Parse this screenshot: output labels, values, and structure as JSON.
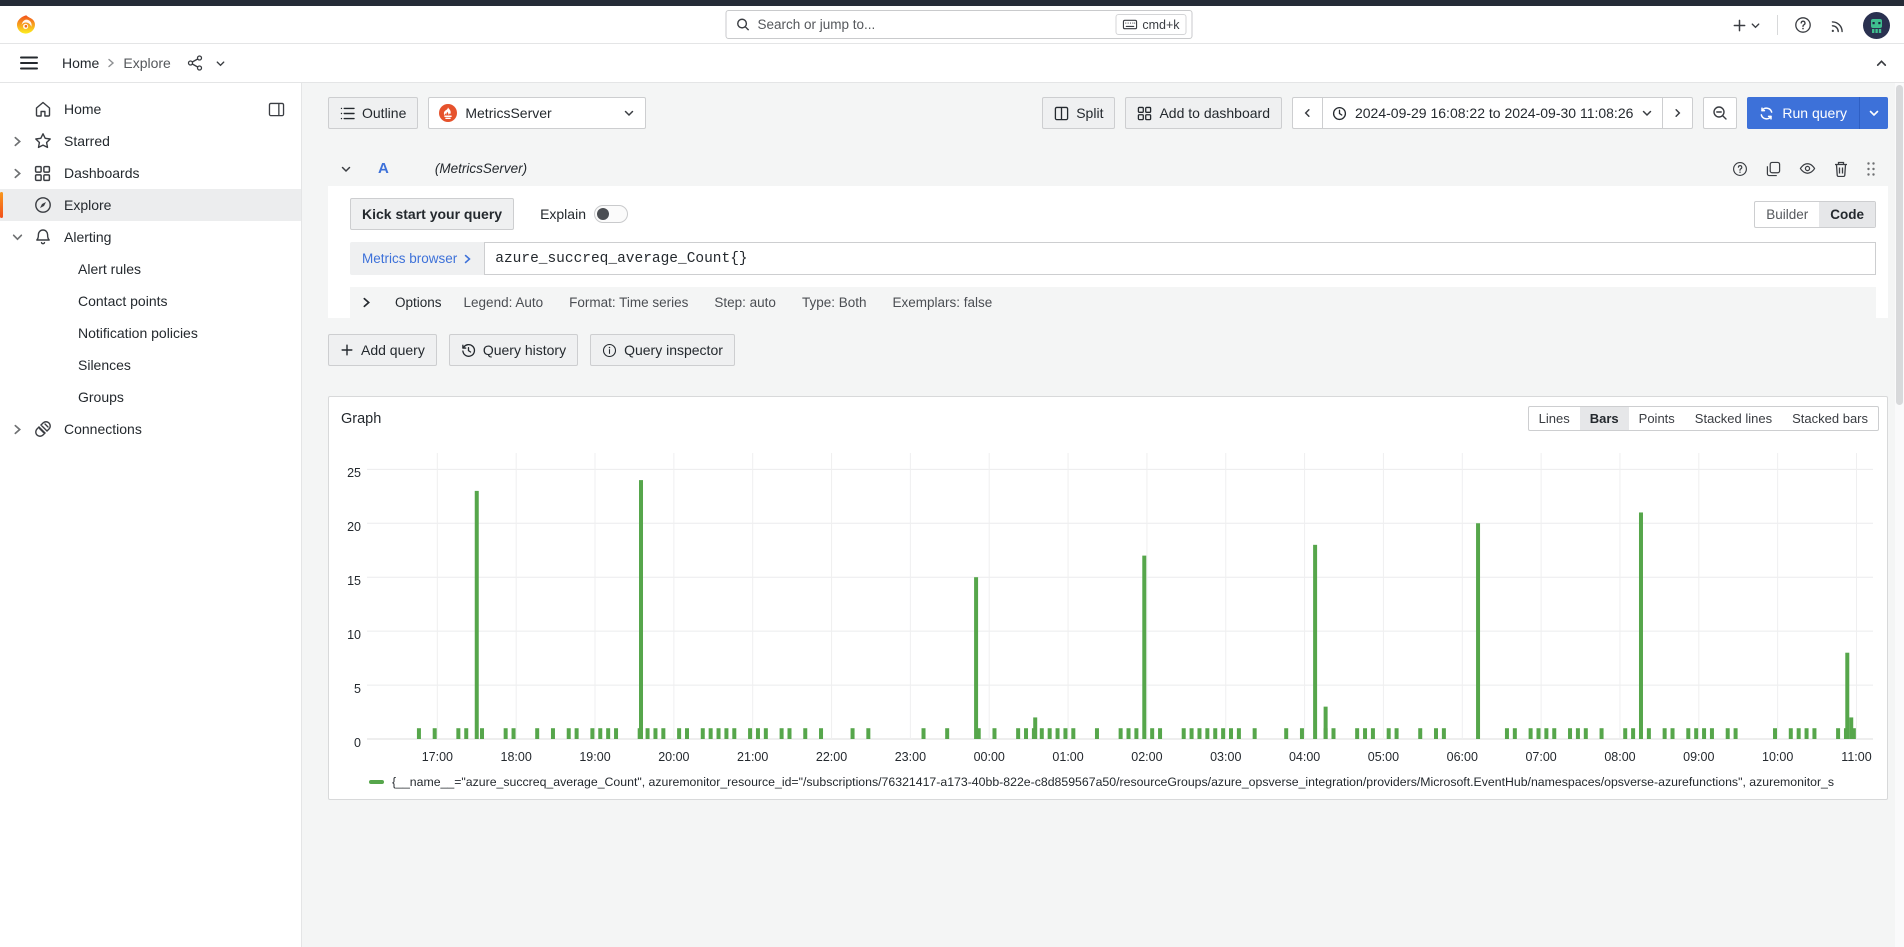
{
  "colors": {
    "accent_blue": "#3D71D9",
    "bar_green": "#56A64B",
    "logo_orange": "#F2501C",
    "prometheus_red": "#E6522C",
    "top_strip": "#252B37"
  },
  "topbar": {
    "search": {
      "placeholder": "Search or jump to...",
      "shortcut": "cmd+k"
    }
  },
  "breadcrumb": {
    "home": "Home",
    "current": "Explore"
  },
  "sidebar": {
    "items": [
      {
        "label": "Home",
        "icon": "home-icon",
        "caret": "",
        "active": false,
        "children": []
      },
      {
        "label": "Starred",
        "icon": "star-icon",
        "caret": "right",
        "active": false,
        "children": []
      },
      {
        "label": "Dashboards",
        "icon": "apps-icon",
        "caret": "right",
        "active": false,
        "children": []
      },
      {
        "label": "Explore",
        "icon": "compass-icon",
        "caret": "",
        "active": true,
        "children": []
      },
      {
        "label": "Alerting",
        "icon": "bell-icon",
        "caret": "down",
        "active": false,
        "children": [
          "Alert rules",
          "Contact points",
          "Notification policies",
          "Silences",
          "Groups"
        ]
      },
      {
        "label": "Connections",
        "icon": "plug-icon",
        "caret": "right",
        "active": false,
        "children": []
      }
    ]
  },
  "toolbar": {
    "outline_label": "Outline",
    "datasource": "MetricsServer",
    "split_label": "Split",
    "add_to_dashboard_label": "Add to dashboard",
    "time_range": "2024-09-29 16:08:22 to 2024-09-30 11:08:26",
    "run_query_label": "Run query"
  },
  "query": {
    "ref_id": "A",
    "datasource_hint": "(MetricsServer)",
    "kick_start_label": "Kick start your query",
    "explain_label": "Explain",
    "builder_label": "Builder",
    "code_label": "Code",
    "metrics_browser_label": "Metrics browser",
    "expression": "azure_succreq_average_Count{}",
    "options_label": "Options",
    "options_summary": [
      "Legend: Auto",
      "Format: Time series",
      "Step: auto",
      "Type: Both",
      "Exemplars: false"
    ]
  },
  "actions": {
    "add_query": "Add query",
    "query_history": "Query history",
    "query_inspector": "Query inspector"
  },
  "graph": {
    "title": "Graph",
    "vis_options": [
      "Lines",
      "Bars",
      "Points",
      "Stacked lines",
      "Stacked bars"
    ],
    "active_vis": "Bars"
  },
  "chart_data": {
    "type": "bar",
    "title": "Graph",
    "color": "#56A64B",
    "x_range_start": "2024-09-29 16:08:22",
    "x_range_end": "2024-09-30 11:08:26",
    "x_ticks": [
      "17:00",
      "18:00",
      "19:00",
      "20:00",
      "21:00",
      "22:00",
      "23:00",
      "00:00",
      "01:00",
      "02:00",
      "03:00",
      "04:00",
      "05:00",
      "06:00",
      "07:00",
      "08:00",
      "09:00",
      "10:00",
      "11:00"
    ],
    "y_ticks": [
      0,
      5,
      10,
      15,
      20,
      25
    ],
    "ylim": [
      0,
      26.5
    ],
    "grid": true,
    "baseline": {
      "value": 1,
      "interval_minutes": 6,
      "density": 0.62,
      "gaps": [
        [
          "16:09",
          "16:24"
        ],
        [
          "09:33",
          "09:57"
        ]
      ]
    },
    "spikes": [
      {
        "time": "17:30",
        "value": 23
      },
      {
        "time": "19:35",
        "value": 24
      },
      {
        "time": "23:50",
        "value": 15
      },
      {
        "time": "00:35",
        "value": 2
      },
      {
        "time": "01:58",
        "value": 17
      },
      {
        "time": "04:08",
        "value": 18
      },
      {
        "time": "04:16",
        "value": 3
      },
      {
        "time": "06:12",
        "value": 20
      },
      {
        "time": "08:16",
        "value": 21
      },
      {
        "time": "10:53",
        "value": 8
      },
      {
        "time": "10:56",
        "value": 2
      }
    ],
    "legend": [
      {
        "color": "#56A64B",
        "label": "{__name__=\"azure_succreq_average_Count\", azuremonitor_resource_id=\"/subscriptions/76321417-a173-40bb-822e-c8d859567a50/resourceGroups/azure_opsverse_integration/providers/Microsoft.EventHub/namespaces/opsverse-azurefunctions\", azuremonitor_s"
      }
    ]
  }
}
